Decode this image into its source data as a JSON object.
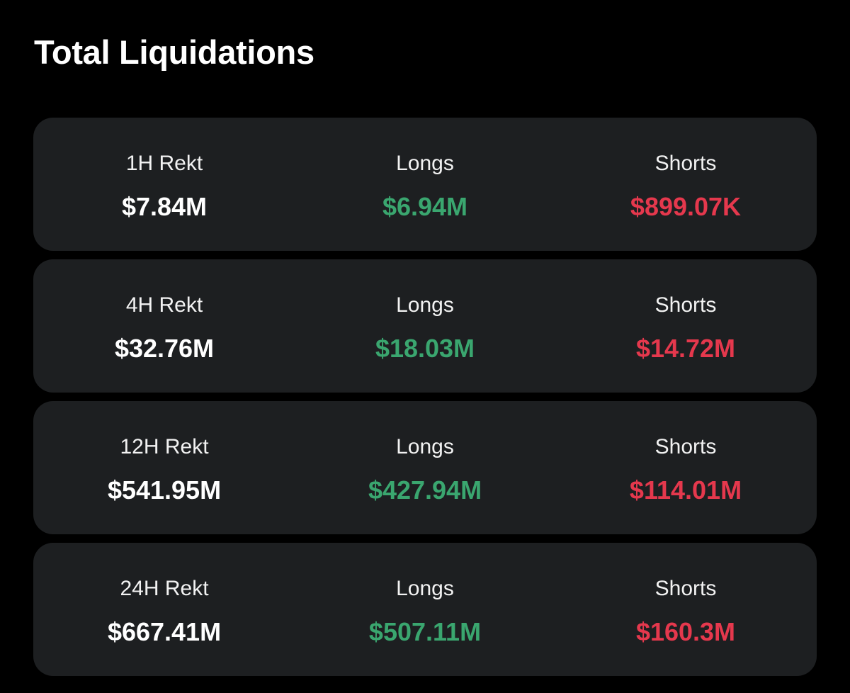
{
  "page": {
    "title": "Total Liquidations"
  },
  "colors": {
    "background": "#000000",
    "card": "#1d1f21",
    "long": "#3aa66f",
    "short": "#e5384d",
    "text": "#ffffff"
  },
  "cards": [
    {
      "period_label": "1H Rekt",
      "total": "$7.84M",
      "longs_label": "Longs",
      "longs": "$6.94M",
      "shorts_label": "Shorts",
      "shorts": "$899.07K"
    },
    {
      "period_label": "4H Rekt",
      "total": "$32.76M",
      "longs_label": "Longs",
      "longs": "$18.03M",
      "shorts_label": "Shorts",
      "shorts": "$14.72M"
    },
    {
      "period_label": "12H Rekt",
      "total": "$541.95M",
      "longs_label": "Longs",
      "longs": "$427.94M",
      "shorts_label": "Shorts",
      "shorts": "$114.01M"
    },
    {
      "period_label": "24H Rekt",
      "total": "$667.41M",
      "longs_label": "Longs",
      "longs": "$507.11M",
      "shorts_label": "Shorts",
      "shorts": "$160.3M"
    }
  ]
}
